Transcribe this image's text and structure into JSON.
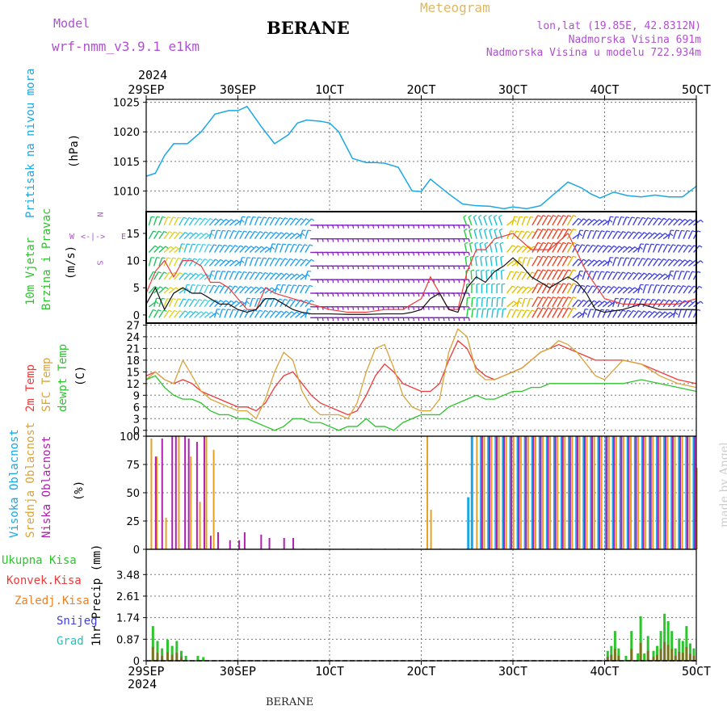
{
  "header": {
    "model_label": "Model",
    "model_name": "wrf-nmm_v3.9.1 e1km",
    "station": "BERANE",
    "meteogram": "Meteogram",
    "coords": "lon,lat (19.85E, 42.8312N)",
    "altitude": "Nadmorska Visina 691m",
    "model_altitude": "Nadmorska Visina u modelu 722.934m",
    "year_top": "2024",
    "year_bottom": "2024",
    "footer_station": "BERANE",
    "credit": "made by Angel"
  },
  "colors": {
    "pressure": "#1aa7e6",
    "temp2m": "#ee3a3a",
    "sfc": "#d9a43a",
    "dewpt": "#2dc42d",
    "high_cloud": "#1aa7e6",
    "mid_cloud": "#e8a020",
    "low_cloud": "#b020b0",
    "total_precip": "#2dc42d",
    "conv_precip": "#ee3a3a",
    "frozen_precip": "#f08020",
    "snow": "#4040e0",
    "hail": "#20c0c0",
    "purple_text": "#b050d0",
    "wind_speed": "#111111",
    "wind_gust": "#ee3a3a"
  },
  "chart_data": [
    {
      "type": "line",
      "id": "pressure",
      "ylabel": "Pritisak na nivou mora",
      "unit": "(hPa)",
      "x_ticks": [
        "29SEP",
        "30SEP",
        "1OCT",
        "2OCT",
        "3OCT",
        "4OCT",
        "5OCT"
      ],
      "ylim": [
        1006.5,
        1025.5
      ],
      "yticks": [
        1010,
        1015,
        1020,
        1025
      ],
      "grid": true,
      "x": [
        0,
        0.1,
        0.2,
        0.3,
        0.45,
        0.6,
        0.75,
        0.9,
        1.0,
        1.1,
        1.25,
        1.4,
        1.55,
        1.65,
        1.75,
        1.9,
        2.0,
        2.1,
        2.25,
        2.4,
        2.5,
        2.6,
        2.75,
        2.9,
        3.0,
        3.1,
        3.3,
        3.45,
        3.6,
        3.75,
        3.9,
        4.0,
        4.15,
        4.3,
        4.45,
        4.6,
        4.75,
        4.85,
        4.95,
        5.1,
        5.25,
        5.4,
        5.55,
        5.7,
        5.85,
        6.0
      ],
      "values": [
        1012.5,
        1013,
        1016,
        1018,
        1018,
        1020,
        1023,
        1023.6,
        1023.6,
        1024.3,
        1021,
        1018,
        1019.5,
        1021.5,
        1022,
        1021.8,
        1021.5,
        1020,
        1015.5,
        1014.8,
        1014.8,
        1014.7,
        1014,
        1010,
        1009.9,
        1012,
        1009.5,
        1007.8,
        1007.5,
        1007.4,
        1007,
        1007.3,
        1007,
        1007.5,
        1009.5,
        1011.5,
        1010.5,
        1009.5,
        1008.8,
        1009.8,
        1009.2,
        1009,
        1009.3,
        1009,
        1009,
        1010.8
      ]
    },
    {
      "type": "line",
      "id": "wind",
      "ylabel": "10m Vjetar Brzina i Pravac",
      "unit": "(m/s)",
      "compass_labels": [
        "N",
        "E",
        "W",
        "S"
      ],
      "ylim": [
        -1.5,
        19
      ],
      "yticks": [
        0,
        5,
        10,
        15
      ],
      "grid": false,
      "series": [
        {
          "name": "speed",
          "x": [
            0,
            0.1,
            0.2,
            0.3,
            0.4,
            0.5,
            0.6,
            0.7,
            0.8,
            0.9,
            1.0,
            1.1,
            1.2,
            1.3,
            1.4,
            1.5,
            1.6,
            1.7,
            1.8,
            2.0,
            2.2,
            2.4,
            2.6,
            2.8,
            2.9,
            3.0,
            3.1,
            3.2,
            3.3,
            3.4,
            3.5,
            3.6,
            3.7,
            3.8,
            3.9,
            4.0,
            4.1,
            4.2,
            4.3,
            4.4,
            4.5,
            4.6,
            4.7,
            4.8,
            4.9,
            5.0,
            5.2,
            5.4,
            5.6,
            5.8,
            6.0
          ],
          "values": [
            2,
            5,
            1,
            4,
            5,
            4,
            4,
            3,
            2,
            2,
            1,
            0.5,
            1,
            3,
            3,
            2,
            1,
            0.5,
            0.2,
            0.2,
            0.1,
            0.1,
            0.2,
            0.2,
            0.5,
            1,
            3,
            4,
            1,
            0.5,
            5,
            7,
            6,
            8,
            9,
            10.5,
            9,
            7,
            6,
            5,
            6,
            7,
            6,
            4,
            1,
            0.5,
            1,
            2,
            1,
            1,
            1
          ]
        },
        {
          "name": "gust",
          "x": [
            0,
            0.1,
            0.2,
            0.3,
            0.4,
            0.5,
            0.6,
            0.7,
            0.8,
            0.9,
            1.0,
            1.1,
            1.2,
            1.3,
            1.4,
            1.6,
            1.8,
            2.0,
            2.2,
            2.4,
            2.6,
            2.8,
            2.9,
            3.0,
            3.1,
            3.2,
            3.3,
            3.4,
            3.5,
            3.6,
            3.7,
            3.8,
            4.0,
            4.2,
            4.4,
            4.6,
            4.8,
            5.0,
            5.2,
            5.4,
            5.6,
            5.8,
            6.0
          ],
          "values": [
            4,
            8,
            10,
            7,
            10,
            10,
            9,
            6,
            6,
            5,
            3,
            1,
            1,
            5,
            4,
            3,
            2,
            1,
            0.5,
            0.5,
            1,
            1,
            2,
            3,
            7,
            4,
            1,
            1,
            8,
            12,
            12,
            14,
            15,
            12,
            12,
            15,
            8,
            3,
            2,
            2,
            2,
            2,
            3
          ]
        }
      ]
    },
    {
      "type": "line",
      "id": "temperature",
      "ylabel": "2m Temp / SFC Temp / dewpt Temp",
      "unit": "(C)",
      "ylim": [
        -1.5,
        27.5
      ],
      "yticks": [
        0,
        3,
        6,
        9,
        12,
        15,
        18,
        21,
        24,
        27
      ],
      "grid": true,
      "series": [
        {
          "name": "2m Temp",
          "x": [
            0,
            0.1,
            0.2,
            0.3,
            0.4,
            0.5,
            0.6,
            0.7,
            0.8,
            0.9,
            1.0,
            1.1,
            1.2,
            1.3,
            1.4,
            1.5,
            1.6,
            1.7,
            1.8,
            1.9,
            2.0,
            2.1,
            2.2,
            2.3,
            2.4,
            2.5,
            2.6,
            2.7,
            2.8,
            2.9,
            3.0,
            3.1,
            3.2,
            3.3,
            3.4,
            3.5,
            3.6,
            3.7,
            3.8,
            3.9,
            4.0,
            4.1,
            4.2,
            4.3,
            4.4,
            4.5,
            4.6,
            4.7,
            4.8,
            4.9,
            5.0,
            5.2,
            5.4,
            5.6,
            5.8,
            6.0
          ],
          "values": [
            14,
            15,
            13,
            12,
            13,
            12,
            10,
            9,
            8,
            7,
            6,
            6,
            5,
            7,
            11,
            14,
            15,
            12,
            9,
            7,
            6,
            5,
            4,
            5,
            9,
            14,
            17,
            15,
            12,
            11,
            10,
            10,
            12,
            18,
            23,
            21,
            16,
            14,
            13,
            14,
            15,
            16,
            18,
            20,
            21,
            22,
            21,
            20,
            19,
            18,
            18,
            18,
            17,
            15,
            13,
            12
          ]
        },
        {
          "name": "SFC Temp",
          "x": [
            0,
            0.1,
            0.2,
            0.3,
            0.4,
            0.5,
            0.6,
            0.7,
            0.8,
            0.9,
            1.0,
            1.1,
            1.2,
            1.3,
            1.4,
            1.5,
            1.6,
            1.7,
            1.8,
            1.9,
            2.0,
            2.1,
            2.2,
            2.3,
            2.4,
            2.5,
            2.6,
            2.7,
            2.8,
            2.9,
            3.0,
            3.1,
            3.2,
            3.3,
            3.4,
            3.5,
            3.6,
            3.7,
            3.8,
            3.9,
            4.0,
            4.1,
            4.2,
            4.3,
            4.4,
            4.5,
            4.6,
            4.7,
            4.8,
            4.9,
            5.0,
            5.2,
            5.4,
            5.6,
            5.8,
            6.0
          ],
          "values": [
            13,
            15,
            13,
            12,
            18,
            14,
            10,
            8,
            7,
            6,
            5,
            5,
            3,
            8,
            15,
            20,
            18,
            10,
            6,
            4,
            4,
            4,
            3,
            7,
            15,
            21,
            22,
            16,
            9,
            6,
            5,
            5,
            8,
            20,
            26,
            24,
            15,
            13,
            13,
            14,
            15,
            16,
            18,
            20,
            21,
            23,
            22,
            20,
            17,
            14,
            13,
            18,
            17,
            14,
            12,
            11
          ]
        },
        {
          "name": "dewpt Temp",
          "x": [
            0,
            0.1,
            0.2,
            0.3,
            0.4,
            0.5,
            0.6,
            0.7,
            0.8,
            0.9,
            1.0,
            1.1,
            1.2,
            1.3,
            1.4,
            1.5,
            1.6,
            1.7,
            1.8,
            1.9,
            2.0,
            2.1,
            2.2,
            2.3,
            2.4,
            2.5,
            2.6,
            2.7,
            2.8,
            2.9,
            3.0,
            3.1,
            3.2,
            3.3,
            3.4,
            3.5,
            3.6,
            3.7,
            3.8,
            3.9,
            4.0,
            4.1,
            4.2,
            4.3,
            4.4,
            4.5,
            4.6,
            4.7,
            4.8,
            4.9,
            5.0,
            5.2,
            5.4,
            5.6,
            5.8,
            6.0
          ],
          "values": [
            13,
            14,
            11,
            9,
            8,
            8,
            7,
            5,
            4,
            4,
            3,
            3,
            2,
            1,
            0,
            1,
            3,
            3,
            2,
            2,
            1,
            0,
            1,
            1,
            3,
            1,
            1,
            0,
            2,
            3,
            4,
            4,
            4,
            6,
            7,
            8,
            9,
            8,
            8,
            9,
            10,
            10,
            11,
            11,
            12,
            12,
            12,
            12,
            12,
            12,
            12,
            12,
            13,
            12,
            11,
            10
          ]
        }
      ]
    },
    {
      "type": "bar",
      "id": "cloud",
      "ylabel": "Visoka Oblacnost / Srednja Oblacnost / Niska Oblacnost",
      "unit": "(%)",
      "ylim": [
        0,
        100
      ],
      "yticks": [
        0,
        25,
        50,
        75,
        100
      ],
      "grid": true,
      "series": [
        {
          "name": "Visoka Oblacnost",
          "x": [
            3.5,
            3.54,
            3.64,
            3.72,
            3.8,
            3.88,
            3.96,
            4.04,
            4.12,
            4.2,
            4.28,
            4.36,
            4.44,
            4.52,
            4.6,
            4.68,
            4.76,
            4.84,
            4.92,
            5.0,
            5.08,
            5.16,
            5.24,
            5.32,
            5.4,
            5.48,
            5.56,
            5.64,
            5.72,
            5.8,
            5.88,
            5.96
          ],
          "values": [
            46,
            100,
            100,
            100,
            100,
            100,
            100,
            100,
            100,
            100,
            100,
            100,
            100,
            100,
            100,
            100,
            100,
            100,
            100,
            100,
            100,
            100,
            100,
            100,
            100,
            100,
            100,
            100,
            100,
            100,
            100,
            100
          ]
        },
        {
          "name": "Srednja Oblacnost",
          "x": [
            0.03,
            0.09,
            0.19,
            0.33,
            0.46,
            0.56,
            0.63,
            0.71,
            3.04,
            3.08,
            3.58,
            3.66,
            3.74,
            3.82,
            3.9,
            3.98,
            4.06,
            4.14,
            4.22,
            4.3,
            4.38,
            4.46,
            4.54,
            4.62,
            4.7,
            4.78,
            4.86,
            4.94,
            5.02,
            5.1,
            5.18,
            5.26,
            5.34,
            5.42,
            5.5,
            5.58,
            5.66,
            5.74,
            5.82,
            5.9,
            5.98
          ],
          "values": [
            98,
            82,
            28,
            100,
            82,
            42,
            100,
            88,
            100,
            35,
            100,
            100,
            100,
            100,
            100,
            100,
            100,
            100,
            100,
            100,
            100,
            100,
            100,
            100,
            100,
            100,
            100,
            100,
            100,
            100,
            100,
            100,
            100,
            100,
            100,
            100,
            100,
            100,
            100,
            100,
            72
          ]
        },
        {
          "name": "Niska Oblacnost",
          "x": [
            0.06,
            0.13,
            0.24,
            0.28,
            0.38,
            0.42,
            0.51,
            0.59,
            0.66,
            0.74,
            0.87,
            0.97,
            1.03,
            1.21,
            1.3,
            1.46,
            1.56,
            1.67,
            1.81,
            1.96,
            2.11,
            2.26,
            2.41,
            2.56,
            2.71,
            2.86,
            3.01,
            3.16,
            3.31,
            3.46,
            3.62,
            3.7,
            3.78,
            3.86,
            3.94,
            4.02,
            4.1,
            4.18,
            4.26,
            4.34,
            4.42,
            4.5,
            4.58,
            4.66,
            4.74,
            4.82,
            4.9,
            4.98,
            5.06,
            5.14,
            5.22,
            5.3,
            5.38,
            5.46,
            5.54,
            5.62,
            5.7,
            5.78,
            5.86,
            5.94
          ],
          "values": [
            82,
            98,
            100,
            100,
            100,
            98,
            95,
            100,
            12,
            15,
            8,
            8,
            15,
            13,
            10,
            10,
            10,
            0.5,
            0.5,
            0.5,
            0.5,
            0.5,
            0.5,
            0.5,
            0.5,
            0.5,
            0.5,
            0.5,
            0.5,
            0.5,
            100,
            100,
            100,
            100,
            100,
            100,
            100,
            100,
            100,
            100,
            100,
            100,
            100,
            100,
            100,
            100,
            100,
            100,
            100,
            100,
            100,
            100,
            100,
            100,
            100,
            100,
            100,
            100,
            100,
            100
          ]
        }
      ]
    },
    {
      "type": "bar",
      "id": "precip",
      "ylabel": "1hr Precip (mm)",
      "legend": [
        "Ukupna Kisa",
        "Konvek.Kisa",
        "Zaledj.Kisa",
        "Snijeg",
        "Grad"
      ],
      "ylim": [
        0,
        4.5
      ],
      "yticks": [
        "0",
        "0.87",
        "1.74",
        "2.61",
        "3.48"
      ],
      "grid": true,
      "x": [
        0.06,
        0.11,
        0.16,
        0.22,
        0.27,
        0.32,
        0.37,
        0.42,
        0.55,
        0.61,
        5.02,
        5.06,
        5.1,
        5.14,
        5.22,
        5.28,
        5.35,
        5.38,
        5.42,
        5.46,
        5.52,
        5.56,
        5.6,
        5.64,
        5.68,
        5.72,
        5.76,
        5.8,
        5.84,
        5.88,
        5.92,
        5.96
      ],
      "values": [
        1.4,
        0.8,
        0.5,
        0.85,
        0.6,
        0.8,
        0.4,
        0.2,
        0.2,
        0.15,
        0.4,
        0.6,
        1.2,
        0.5,
        0.2,
        1.2,
        0.3,
        1.8,
        0.3,
        1.0,
        0.4,
        0.6,
        1.2,
        1.9,
        1.6,
        1.2,
        0.5,
        0.9,
        0.8,
        1.4,
        0.7,
        0.5
      ]
    }
  ]
}
